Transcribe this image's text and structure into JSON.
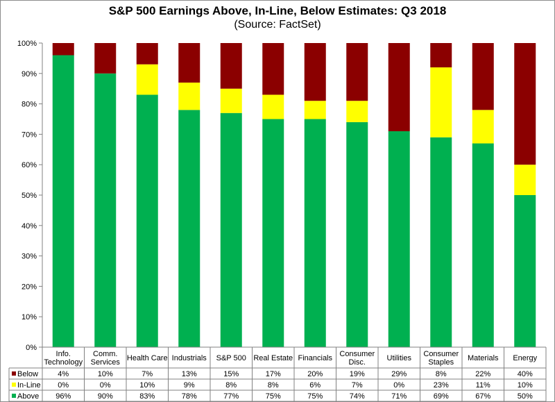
{
  "chart_data": {
    "type": "bar",
    "stacked": true,
    "title": "S&P 500 Earnings Above, In-Line, Below Estimates: Q3 2018",
    "subtitle": "(Source: FactSet)",
    "categories": [
      [
        "Info.",
        "Technology"
      ],
      [
        "Comm.",
        "Services"
      ],
      [
        "Health Care"
      ],
      [
        "Industrials"
      ],
      [
        "S&P 500"
      ],
      [
        "Real Estate"
      ],
      [
        "Financials"
      ],
      [
        "Consumer",
        "Disc."
      ],
      [
        "Utilities"
      ],
      [
        "Consumer",
        "Staples"
      ],
      [
        "Materials"
      ],
      [
        "Energy"
      ]
    ],
    "series": [
      {
        "name": "Above",
        "color": "#00b050",
        "values": [
          96,
          90,
          83,
          78,
          77,
          75,
          75,
          74,
          71,
          69,
          67,
          50
        ],
        "labels": [
          "96%",
          "90%",
          "83%",
          "78%",
          "77%",
          "75%",
          "75%",
          "74%",
          "71%",
          "69%",
          "67%",
          "50%"
        ]
      },
      {
        "name": "In-Line",
        "color": "#ffff00",
        "values": [
          0,
          0,
          10,
          9,
          8,
          8,
          6,
          7,
          0,
          23,
          11,
          10
        ],
        "labels": [
          "0%",
          "0%",
          "10%",
          "9%",
          "8%",
          "8%",
          "6%",
          "7%",
          "0%",
          "23%",
          "11%",
          "10%"
        ]
      },
      {
        "name": "Below",
        "color": "#8b0000",
        "values": [
          4,
          10,
          7,
          13,
          15,
          17,
          20,
          19,
          29,
          8,
          22,
          40
        ],
        "labels": [
          "4%",
          "10%",
          "7%",
          "13%",
          "15%",
          "17%",
          "20%",
          "19%",
          "29%",
          "8%",
          "22%",
          "40%"
        ]
      }
    ],
    "ylim": [
      0,
      100
    ],
    "yticks": [
      "0%",
      "10%",
      "20%",
      "30%",
      "40%",
      "50%",
      "60%",
      "70%",
      "80%",
      "90%",
      "100%"
    ],
    "grid": false,
    "legend": "data-table-bottom"
  }
}
